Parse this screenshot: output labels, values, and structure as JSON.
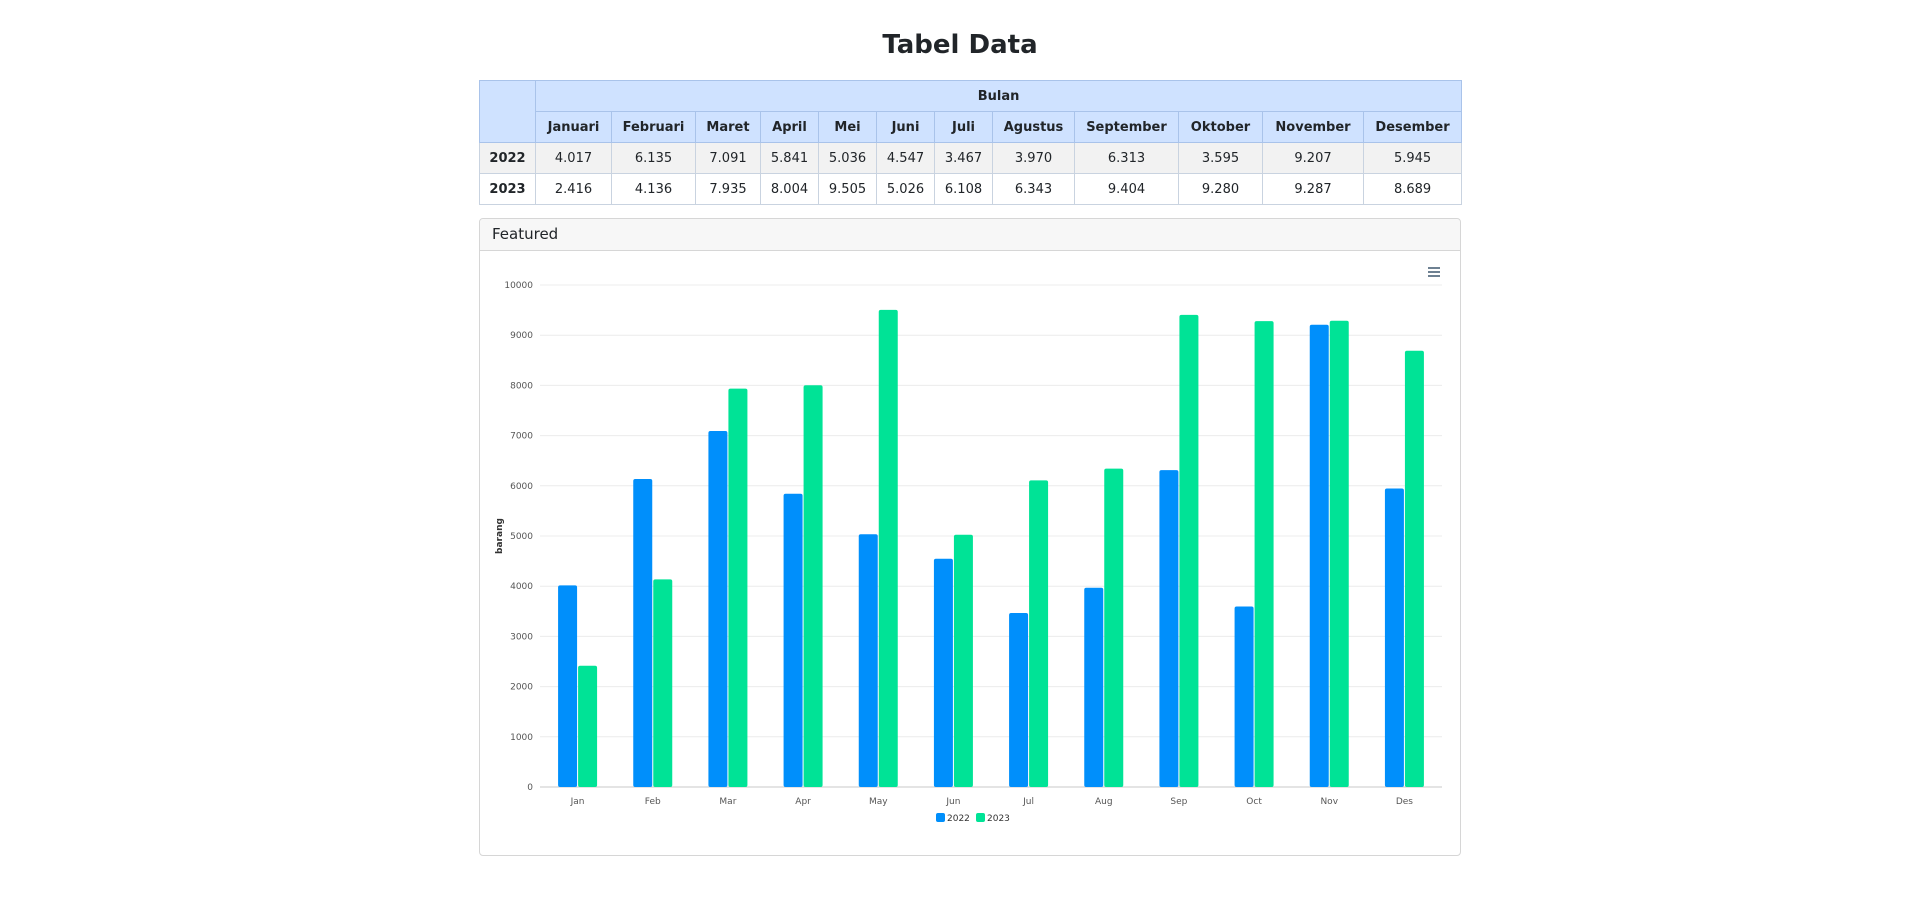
{
  "page": {
    "title": "Tabel Data"
  },
  "table": {
    "group_header": "Bulan",
    "months": [
      "Januari",
      "Februari",
      "Maret",
      "April",
      "Mei",
      "Juni",
      "Juli",
      "Agustus",
      "September",
      "Oktober",
      "November",
      "Desember"
    ],
    "rows": [
      {
        "year": "2022",
        "values": [
          "4.017",
          "6.135",
          "7.091",
          "5.841",
          "5.036",
          "4.547",
          "3.467",
          "3.970",
          "6.313",
          "3.595",
          "9.207",
          "5.945"
        ]
      },
      {
        "year": "2023",
        "values": [
          "2.416",
          "4.136",
          "7.935",
          "8.004",
          "9.505",
          "5.026",
          "6.108",
          "6.343",
          "9.404",
          "9.280",
          "9.287",
          "8.689"
        ]
      }
    ]
  },
  "card": {
    "title": "Featured"
  },
  "chart_data": {
    "type": "bar",
    "categories": [
      "Jan",
      "Feb",
      "Mar",
      "Apr",
      "May",
      "Jun",
      "Jul",
      "Aug",
      "Sep",
      "Oct",
      "Nov",
      "Des"
    ],
    "series": [
      {
        "name": "2022",
        "color": "#008ffb",
        "values": [
          4017,
          6135,
          7091,
          5841,
          5036,
          4547,
          3467,
          3970,
          6313,
          3595,
          9207,
          5945
        ]
      },
      {
        "name": "2023",
        "color": "#00e396",
        "values": [
          2416,
          4136,
          7935,
          8004,
          9505,
          5026,
          6108,
          6343,
          9404,
          9280,
          9287,
          8689
        ]
      }
    ],
    "ylabel": "barang",
    "ylim": [
      0,
      10000
    ],
    "yticks": [
      "0",
      "1000",
      "2000",
      "3000",
      "4000",
      "5000",
      "6000",
      "7000",
      "8000",
      "9000",
      "10000"
    ],
    "grid": true,
    "legend": "bottom-center"
  },
  "icons": {
    "menu": "hamburger-menu-icon"
  }
}
